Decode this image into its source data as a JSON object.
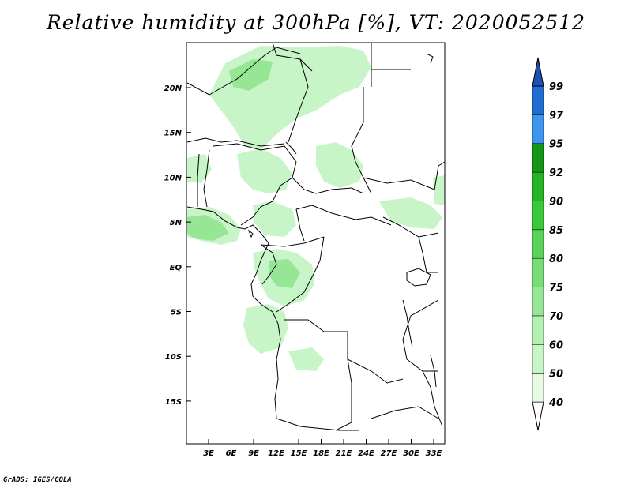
{
  "title": "Relative humidity at 300hPa [%], VT: 2020052512",
  "credit": "GrADS: IGES/COLA",
  "map": {
    "lat_labels": [
      "20N",
      "15N",
      "10N",
      "5N",
      "EQ",
      "5S",
      "10S",
      "15S"
    ],
    "lon_labels": [
      "3E",
      "6E",
      "9E",
      "12E",
      "15E",
      "18E",
      "21E",
      "24E",
      "27E",
      "30E",
      "33E"
    ]
  },
  "colorbar": {
    "labels": [
      "40",
      "50",
      "60",
      "70",
      "75",
      "80",
      "85",
      "90",
      "92",
      "95",
      "97",
      "99"
    ],
    "colors": [
      "#ffffff",
      "#e6fae6",
      "#c8f5c8",
      "#b4f0b4",
      "#96e696",
      "#78dc78",
      "#5ad25a",
      "#3cc83c",
      "#24b424",
      "#169616",
      "#3c96f0",
      "#1e6ed2",
      "#1e50b4"
    ]
  },
  "humidity_color": "#96e696"
}
